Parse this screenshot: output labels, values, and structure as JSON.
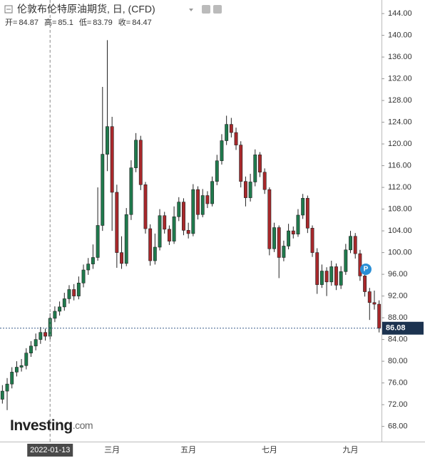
{
  "chart_data": {
    "type": "candlestick",
    "title": "伦敦布伦特原油期货, 日, (CFD)",
    "ohlc_legend": [
      {
        "label": "开=",
        "value": 84.87
      },
      {
        "label": "高=",
        "value": 85.1
      },
      {
        "label": "低=",
        "value": 83.79
      },
      {
        "label": "收=",
        "value": 84.47
      }
    ],
    "categories": [
      null,
      null,
      null,
      null,
      null,
      null,
      null,
      null,
      null,
      null,
      "2022-01-13",
      null,
      null,
      null,
      null,
      null,
      null,
      null,
      null,
      null,
      null,
      null,
      null,
      "三月",
      null,
      null,
      null,
      null,
      null,
      null,
      null,
      null,
      null,
      null,
      null,
      null,
      null,
      null,
      null,
      "五月",
      null,
      null,
      null,
      null,
      null,
      null,
      null,
      null,
      null,
      null,
      null,
      null,
      null,
      null,
      null,
      null,
      "七月",
      null,
      null,
      null,
      null,
      null,
      null,
      null,
      null,
      null,
      null,
      null,
      null,
      null,
      null,
      null,
      null,
      "九月",
      null,
      null,
      null,
      null,
      null,
      null
    ],
    "open": [
      73.0,
      74.5,
      75.8,
      78.0,
      78.9,
      79.2,
      81.5,
      82.8,
      84.0,
      85.3,
      84.6,
      87.9,
      89.2,
      90.0,
      91.5,
      93.2,
      92.0,
      94.4,
      96.8,
      97.9,
      99.1,
      105.0,
      118.1,
      123.2,
      111.1,
      100.0,
      98.0,
      107.0,
      115.6,
      120.7,
      112.5,
      104.4,
      98.5,
      101.0,
      106.8,
      104.3,
      102.1,
      106.6,
      109.3,
      104.1,
      103.5,
      111.6,
      107.0,
      110.5,
      109.0,
      113.1,
      116.9,
      120.6,
      123.6,
      122.1,
      119.8,
      113.1,
      110.1,
      113.0,
      118.0,
      114.8,
      111.6,
      100.7,
      104.6,
      99.1,
      101.2,
      104.0,
      103.4,
      106.9,
      110.0,
      104.5,
      100.0,
      94.1,
      96.6,
      94.6,
      97.4,
      94.0,
      96.5,
      100.5,
      103.0,
      99.8,
      95.7,
      92.8,
      90.8,
      90.5
    ],
    "high": [
      75.6,
      76.9,
      78.9,
      80.0,
      80.4,
      82.4,
      83.7,
      85.1,
      86.3,
      86.0,
      88.8,
      90.1,
      91.0,
      92.6,
      94.0,
      94.2,
      95.6,
      97.8,
      99.0,
      101.5,
      112.0,
      130.5,
      139.1,
      125.0,
      112.5,
      103.0,
      108.2,
      117.0,
      122.0,
      121.5,
      113.0,
      105.2,
      103.5,
      108.0,
      107.5,
      105.0,
      108.5,
      110.2,
      110.0,
      105.5,
      112.6,
      112.2,
      111.7,
      111.3,
      114.0,
      118.0,
      121.8,
      125.2,
      124.8,
      123.0,
      120.5,
      114.0,
      114.5,
      119.0,
      118.5,
      115.5,
      112.0,
      105.5,
      105.0,
      102.2,
      105.3,
      104.8,
      108.0,
      110.8,
      110.5,
      105.0,
      100.8,
      97.8,
      97.3,
      98.5,
      98.0,
      97.5,
      101.6,
      104.0,
      103.6,
      100.5,
      96.8,
      93.5,
      93.0,
      91.2
    ],
    "low": [
      72.2,
      71.0,
      75.0,
      77.2,
      78.1,
      78.5,
      80.8,
      82.0,
      83.2,
      83.8,
      84.0,
      87.2,
      88.4,
      89.3,
      90.6,
      91.2,
      91.4,
      93.6,
      95.9,
      97.0,
      98.5,
      104.0,
      115.0,
      104.0,
      97.2,
      97.0,
      97.5,
      106.0,
      114.8,
      111.5,
      103.5,
      97.6,
      97.8,
      100.4,
      103.5,
      101.4,
      101.6,
      105.8,
      103.2,
      102.6,
      103.0,
      106.1,
      106.5,
      108.2,
      108.5,
      112.4,
      116.2,
      119.8,
      121.2,
      118.9,
      112.0,
      108.5,
      109.4,
      112.2,
      113.9,
      110.8,
      99.5,
      100.1,
      95.3,
      98.4,
      100.6,
      102.6,
      102.9,
      106.2,
      103.6,
      99.2,
      92.4,
      93.5,
      92.0,
      93.9,
      93.1,
      93.3,
      95.9,
      99.9,
      98.9,
      94.8,
      91.9,
      87.6,
      89.5,
      85.3
    ],
    "close": [
      74.5,
      75.8,
      78.0,
      78.9,
      79.2,
      81.5,
      82.8,
      84.0,
      85.3,
      84.6,
      87.9,
      89.2,
      90.0,
      91.5,
      93.2,
      92.0,
      94.4,
      96.8,
      97.9,
      99.1,
      105.0,
      118.1,
      123.2,
      111.1,
      100.0,
      98.0,
      107.0,
      115.6,
      120.7,
      112.5,
      104.4,
      98.5,
      101.0,
      106.8,
      104.3,
      102.1,
      106.6,
      109.3,
      104.1,
      103.5,
      111.6,
      107.0,
      110.5,
      109.0,
      113.1,
      116.9,
      120.6,
      123.6,
      122.1,
      119.8,
      113.1,
      110.1,
      113.0,
      118.0,
      114.8,
      111.6,
      100.7,
      104.6,
      99.1,
      101.2,
      104.0,
      103.4,
      106.9,
      110.0,
      104.5,
      100.0,
      94.1,
      96.6,
      94.6,
      97.4,
      94.0,
      96.5,
      100.5,
      103.0,
      99.8,
      95.7,
      92.8,
      90.8,
      90.5,
      86.08
    ],
    "up_color": "#1f7a4d",
    "down_color": "#a8282b",
    "ylim": [
      65.2,
      146.5
    ],
    "yticks": [
      {
        "value": 68,
        "label": "68.00"
      },
      {
        "value": 72,
        "label": "72.00"
      },
      {
        "value": 76,
        "label": "76.00"
      },
      {
        "value": 80,
        "label": "80.00"
      },
      {
        "value": 84,
        "label": "84.00"
      },
      {
        "value": 88,
        "label": "88.00"
      },
      {
        "value": 92,
        "label": "92.00"
      },
      {
        "value": 96,
        "label": "96.00"
      },
      {
        "value": 100,
        "label": "100.00"
      },
      {
        "value": 104,
        "label": "104.00"
      },
      {
        "value": 108,
        "label": "108.00"
      },
      {
        "value": 112,
        "label": "112.00"
      },
      {
        "value": 116,
        "label": "116.00"
      },
      {
        "value": 120,
        "label": "120.00"
      },
      {
        "value": 124,
        "label": "124.00"
      },
      {
        "value": 128,
        "label": "128.00"
      },
      {
        "value": 132,
        "label": "132.00"
      },
      {
        "value": 136,
        "label": "136.00"
      },
      {
        "value": 140,
        "label": "140.00"
      },
      {
        "value": 144,
        "label": "144.00"
      }
    ],
    "last_price": {
      "value": 86.08,
      "label": "86.08"
    },
    "event_marker": "P",
    "logo": {
      "brand": "Investing",
      "suffix": ".com"
    }
  }
}
